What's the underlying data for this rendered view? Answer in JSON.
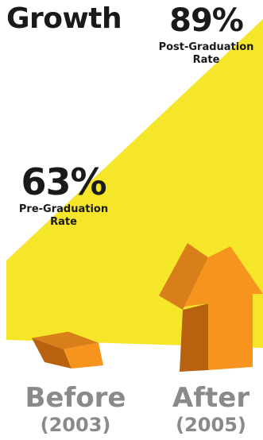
{
  "title": "Growth",
  "chart_data": {
    "type": "bar",
    "title": "Growth",
    "categories": [
      "Before",
      "After"
    ],
    "category_years": [
      "(2003)",
      "(2005)"
    ],
    "values": [
      63,
      89
    ],
    "value_labels": [
      "63%",
      "89%"
    ],
    "series_descriptions": [
      "Pre-Graduation\nRate",
      "Post-Graduation\nRate"
    ],
    "unit": "%",
    "ylim": [
      0,
      100
    ],
    "xlabel": "",
    "ylabel": ""
  },
  "colors": {
    "background": "#ffffff",
    "wedge": "#f5e62a",
    "bar_front": "#f7941d",
    "bar_side": "#b8620f",
    "bar_top": "#d97f1a",
    "text_dark": "#1a1a1a",
    "text_category": "#8a8a8a"
  }
}
